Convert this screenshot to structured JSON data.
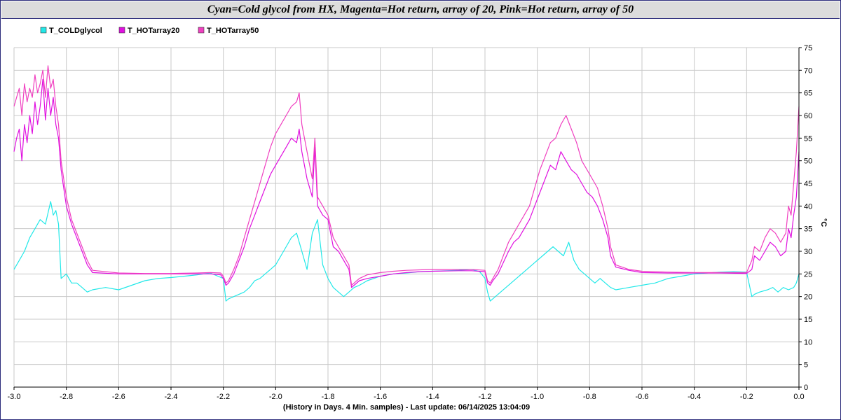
{
  "chart_data": {
    "type": "line",
    "title": "Cyan=Cold glycol from HX, Magenta=Hot return, array of 20, Pink=Hot return, array of 50",
    "xlabel": "(History in Days. 4 Min. samples) - Last update: 06/14/2025 13:04:09",
    "ylabel": "°C",
    "xlim": [
      -3.0,
      0.0
    ],
    "ylim": [
      0,
      75
    ],
    "x_ticks": [
      -3.0,
      -2.8,
      -2.6,
      -2.4,
      -2.2,
      -2.0,
      -1.8,
      -1.6,
      -1.4,
      -1.2,
      -1.0,
      -0.8,
      -0.6,
      -0.4,
      -0.2,
      0.0
    ],
    "x_tick_labels": [
      "-3.0",
      "-2.8",
      "-2.6",
      "-2.4",
      "-2.2",
      "-2.0",
      "-1.8",
      "-1.6",
      "-1.4",
      "-1.2",
      "-1.0",
      "-0.8",
      "-0.6",
      "-0.4",
      "-0.2",
      "0.0"
    ],
    "y_ticks": [
      0,
      5,
      10,
      15,
      20,
      25,
      30,
      35,
      40,
      45,
      50,
      55,
      60,
      65,
      70,
      75
    ],
    "y_tick_labels": [
      "0",
      "5",
      "10",
      "15",
      "20",
      "25",
      "30",
      "35",
      "40",
      "45",
      "50",
      "55",
      "60",
      "65",
      "70",
      "75"
    ],
    "y_axis_side": "right",
    "grid": true,
    "legend_position": "top-left",
    "series": [
      {
        "name": "T_COLDglycol",
        "color": "#22e8e8",
        "x": [
          -3.0,
          -2.98,
          -2.96,
          -2.94,
          -2.92,
          -2.9,
          -2.88,
          -2.86,
          -2.85,
          -2.84,
          -2.83,
          -2.82,
          -2.8,
          -2.78,
          -2.76,
          -2.74,
          -2.72,
          -2.7,
          -2.65,
          -2.6,
          -2.55,
          -2.5,
          -2.45,
          -2.4,
          -2.35,
          -2.3,
          -2.25,
          -2.2,
          -2.19,
          -2.18,
          -2.16,
          -2.14,
          -2.12,
          -2.1,
          -2.08,
          -2.06,
          -2.04,
          -2.02,
          -2.0,
          -1.98,
          -1.96,
          -1.94,
          -1.92,
          -1.9,
          -1.88,
          -1.86,
          -1.84,
          -1.82,
          -1.8,
          -1.78,
          -1.76,
          -1.74,
          -1.72,
          -1.7,
          -1.68,
          -1.65,
          -1.6,
          -1.55,
          -1.5,
          -1.45,
          -1.4,
          -1.35,
          -1.3,
          -1.25,
          -1.22,
          -1.2,
          -1.19,
          -1.18,
          -1.16,
          -1.14,
          -1.12,
          -1.1,
          -1.08,
          -1.06,
          -1.04,
          -1.02,
          -1.0,
          -0.98,
          -0.96,
          -0.94,
          -0.92,
          -0.9,
          -0.88,
          -0.86,
          -0.84,
          -0.82,
          -0.8,
          -0.78,
          -0.76,
          -0.74,
          -0.72,
          -0.7,
          -0.65,
          -0.6,
          -0.55,
          -0.5,
          -0.45,
          -0.4,
          -0.35,
          -0.3,
          -0.25,
          -0.2,
          -0.18,
          -0.17,
          -0.15,
          -0.12,
          -0.1,
          -0.08,
          -0.06,
          -0.04,
          -0.02,
          -0.01,
          0.0
        ],
        "y": [
          26,
          28,
          30,
          33,
          35,
          37,
          36,
          41,
          38,
          39,
          36,
          24,
          25,
          23,
          23,
          22,
          21,
          21.5,
          22,
          21.5,
          22.5,
          23.5,
          24,
          24.2,
          24.5,
          24.8,
          25.2,
          24,
          19,
          19.5,
          20,
          20.5,
          21,
          22,
          23.5,
          24,
          25,
          26,
          27,
          29,
          31,
          33,
          34,
          30,
          26,
          34,
          37,
          27,
          24,
          22,
          21,
          20,
          21,
          22,
          22.5,
          23.5,
          24.5,
          25,
          25.2,
          25.5,
          25.6,
          25.7,
          25.8,
          26,
          25.5,
          24,
          21,
          19,
          20,
          21,
          22,
          23,
          24,
          25,
          26,
          27,
          28,
          29,
          30,
          31,
          30,
          29,
          32,
          28,
          26,
          25,
          24,
          23,
          24,
          23,
          22,
          21.5,
          22,
          22.5,
          23,
          24,
          24.5,
          25,
          25.2,
          25.4,
          25.5,
          25.4,
          20,
          20.5,
          21,
          21.5,
          22,
          21,
          22,
          21.5,
          22,
          23,
          25
        ]
      },
      {
        "name": "T_HOTarray20",
        "color": "#e010e0",
        "x": [
          -3.0,
          -2.99,
          -2.98,
          -2.97,
          -2.96,
          -2.95,
          -2.94,
          -2.93,
          -2.92,
          -2.91,
          -2.9,
          -2.89,
          -2.88,
          -2.87,
          -2.86,
          -2.85,
          -2.84,
          -2.83,
          -2.82,
          -2.81,
          -2.8,
          -2.78,
          -2.76,
          -2.74,
          -2.72,
          -2.7,
          -2.6,
          -2.5,
          -2.4,
          -2.3,
          -2.25,
          -2.21,
          -2.2,
          -2.19,
          -2.18,
          -2.16,
          -2.14,
          -2.12,
          -2.1,
          -2.08,
          -2.06,
          -2.04,
          -2.02,
          -2.0,
          -1.98,
          -1.96,
          -1.94,
          -1.92,
          -1.91,
          -1.9,
          -1.88,
          -1.86,
          -1.85,
          -1.84,
          -1.82,
          -1.8,
          -1.78,
          -1.76,
          -1.74,
          -1.72,
          -1.71,
          -1.7,
          -1.68,
          -1.65,
          -1.6,
          -1.55,
          -1.5,
          -1.45,
          -1.4,
          -1.3,
          -1.25,
          -1.2,
          -1.19,
          -1.18,
          -1.17,
          -1.15,
          -1.13,
          -1.11,
          -1.09,
          -1.07,
          -1.05,
          -1.03,
          -1.01,
          -0.99,
          -0.97,
          -0.95,
          -0.93,
          -0.91,
          -0.89,
          -0.87,
          -0.85,
          -0.83,
          -0.81,
          -0.79,
          -0.77,
          -0.75,
          -0.73,
          -0.72,
          -0.7,
          -0.65,
          -0.6,
          -0.5,
          -0.4,
          -0.3,
          -0.2,
          -0.18,
          -0.17,
          -0.15,
          -0.13,
          -0.11,
          -0.09,
          -0.07,
          -0.05,
          -0.04,
          -0.03,
          -0.02,
          -0.01,
          0.0
        ],
        "y": [
          52,
          55,
          57,
          50,
          58,
          54,
          60,
          56,
          63,
          58,
          62,
          68,
          59,
          66,
          60,
          64,
          58,
          55,
          48,
          44,
          40,
          36,
          33,
          30,
          27,
          25.3,
          25,
          25,
          25,
          25,
          25,
          24.8,
          24,
          22.5,
          23,
          25,
          28,
          31,
          35,
          38,
          41,
          44,
          47,
          49,
          51,
          53,
          55,
          54,
          57,
          52,
          46,
          42,
          53,
          40,
          38,
          37,
          31,
          30,
          28,
          26,
          22,
          22.5,
          23.5,
          24,
          24.5,
          25,
          25.3,
          25.5,
          25.6,
          25.7,
          25.7,
          25.5,
          23,
          22.5,
          23.5,
          25,
          27.5,
          30,
          32,
          33,
          35,
          37,
          40,
          43,
          46,
          49,
          48,
          52,
          50,
          48,
          47,
          45,
          43,
          42,
          40,
          37,
          33,
          29,
          26.5,
          25.8,
          25.3,
          25.2,
          25.2,
          25.2,
          25.1,
          26,
          29,
          28,
          30,
          32,
          31,
          29,
          30,
          35,
          33,
          38,
          42,
          52
        ]
      },
      {
        "name": "T_HOTarray50",
        "color": "#f040c0",
        "x": [
          -3.0,
          -2.99,
          -2.98,
          -2.97,
          -2.96,
          -2.95,
          -2.94,
          -2.93,
          -2.92,
          -2.91,
          -2.9,
          -2.89,
          -2.88,
          -2.87,
          -2.86,
          -2.85,
          -2.84,
          -2.83,
          -2.82,
          -2.81,
          -2.8,
          -2.78,
          -2.76,
          -2.74,
          -2.72,
          -2.7,
          -2.6,
          -2.5,
          -2.4,
          -2.3,
          -2.25,
          -2.21,
          -2.2,
          -2.19,
          -2.18,
          -2.16,
          -2.14,
          -2.12,
          -2.1,
          -2.08,
          -2.06,
          -2.04,
          -2.02,
          -2.0,
          -1.98,
          -1.96,
          -1.94,
          -1.92,
          -1.91,
          -1.9,
          -1.88,
          -1.86,
          -1.85,
          -1.84,
          -1.82,
          -1.8,
          -1.78,
          -1.76,
          -1.74,
          -1.72,
          -1.71,
          -1.7,
          -1.68,
          -1.65,
          -1.6,
          -1.55,
          -1.5,
          -1.45,
          -1.4,
          -1.3,
          -1.25,
          -1.2,
          -1.19,
          -1.18,
          -1.17,
          -1.15,
          -1.13,
          -1.11,
          -1.09,
          -1.07,
          -1.05,
          -1.03,
          -1.01,
          -0.99,
          -0.97,
          -0.95,
          -0.93,
          -0.91,
          -0.89,
          -0.87,
          -0.85,
          -0.83,
          -0.81,
          -0.79,
          -0.77,
          -0.75,
          -0.73,
          -0.72,
          -0.7,
          -0.65,
          -0.6,
          -0.5,
          -0.4,
          -0.3,
          -0.2,
          -0.18,
          -0.17,
          -0.15,
          -0.13,
          -0.11,
          -0.09,
          -0.07,
          -0.05,
          -0.04,
          -0.03,
          -0.02,
          -0.01,
          0.0
        ],
        "y": [
          62,
          64,
          66,
          60,
          67,
          63,
          66,
          64,
          69,
          65,
          67,
          70,
          64,
          71,
          66,
          68,
          62,
          58,
          50,
          46,
          42,
          37,
          34,
          31,
          28,
          25.8,
          25.2,
          25.1,
          25.1,
          25.2,
          25.3,
          25.2,
          24.5,
          23,
          23.5,
          26,
          29,
          33,
          37,
          41,
          45,
          49,
          53,
          56,
          58,
          60,
          62,
          63,
          65,
          58,
          52,
          46,
          55,
          42,
          40,
          38,
          33,
          31,
          29,
          27,
          22.5,
          23,
          24,
          24.8,
          25.3,
          25.6,
          25.8,
          25.9,
          26,
          26,
          26,
          25.8,
          23.5,
          23,
          24,
          26,
          29,
          32,
          34,
          36,
          38,
          40,
          44,
          48,
          51,
          54,
          55,
          58,
          60,
          57,
          54,
          50,
          48,
          46,
          44,
          40,
          35,
          31,
          27,
          26,
          25.6,
          25.4,
          25.3,
          25.3,
          25.3,
          28,
          31,
          30,
          33,
          35,
          34,
          32,
          34,
          40,
          38,
          45,
          52,
          62
        ]
      }
    ]
  }
}
